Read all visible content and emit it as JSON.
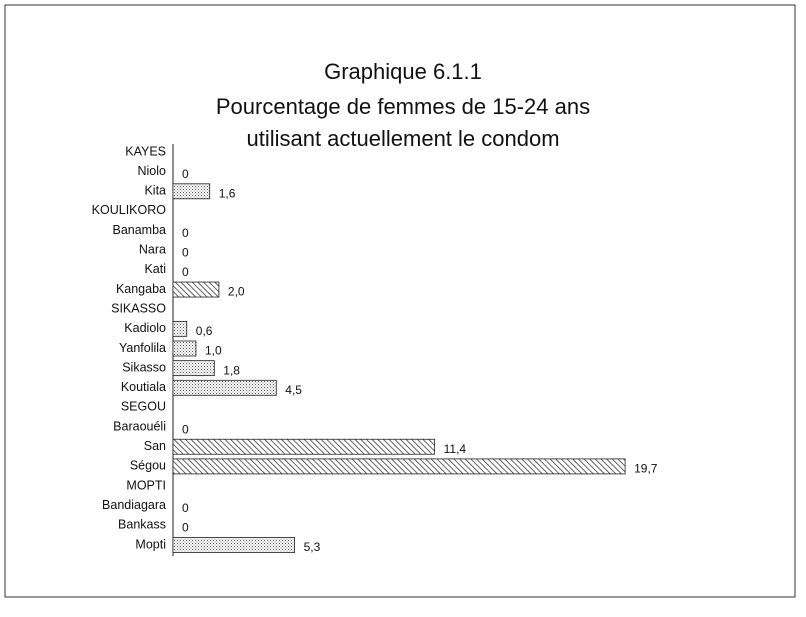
{
  "chart_data": {
    "type": "barh",
    "title": "Graphique 6.1.1",
    "subtitle": [
      "Pourcentage de femmes de 15-24 ans",
      "utilisant actuellement le condom"
    ],
    "categories": [
      "KAYES",
      "Niolo",
      "Kita",
      "KOULIKORO",
      "Banamba",
      "Nara",
      "Kati",
      "Kangaba",
      "SIKASSO",
      "Kadiolo",
      "Yanfolila",
      "Sikasso",
      "Koutiala",
      "SEGOU",
      "Baraouéli",
      "San",
      "Ségou",
      "MOPTI",
      "Bandiagara",
      "Bankass",
      "Mopti"
    ],
    "values": [
      null,
      0,
      1.6,
      null,
      0,
      0,
      0,
      2.0,
      null,
      0.6,
      1.0,
      1.8,
      4.5,
      null,
      0,
      11.4,
      19.7,
      null,
      0,
      0,
      5.3
    ],
    "value_labels": [
      null,
      "0",
      "1,6",
      null,
      "0",
      "0",
      "0",
      "2,0",
      null,
      "0,6",
      "1,0",
      "1,8",
      "4,5",
      null,
      "0",
      "11,4",
      "19,7",
      null,
      "0",
      "0",
      "5,3"
    ],
    "patterns": [
      null,
      "dots",
      "dots",
      null,
      "dots",
      "dots",
      "dots",
      "hatch",
      null,
      "dots",
      "dots",
      "dots",
      "dots",
      null,
      "dots",
      "hatch",
      "hatch",
      null,
      "dots",
      "dots",
      "dots"
    ],
    "xlim": [
      0,
      20
    ]
  }
}
